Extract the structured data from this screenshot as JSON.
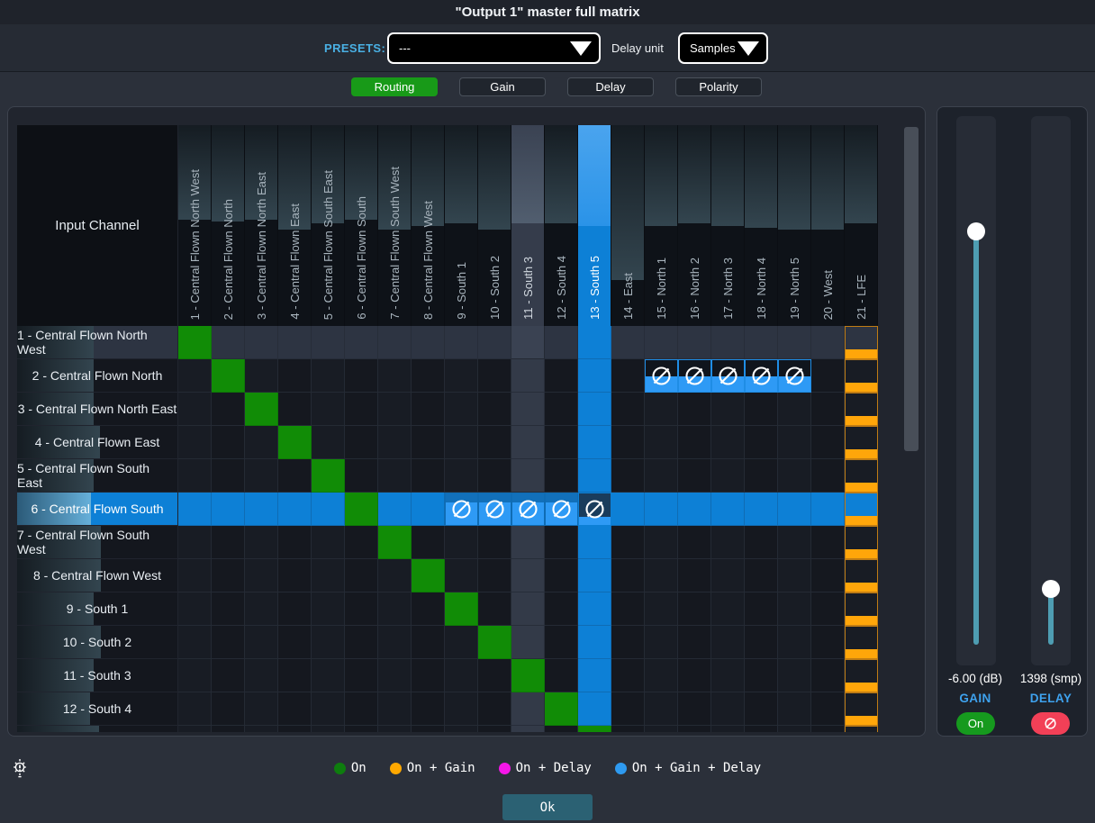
{
  "title": "\"Output 1\" master full matrix",
  "toolbar": {
    "presets_label": "PRESETS:",
    "presets_value": "---",
    "delay_unit_label": "Delay unit",
    "delay_unit_value": "Samples"
  },
  "tabs": [
    {
      "label": "Routing",
      "active": true
    },
    {
      "label": "Gain",
      "active": false
    },
    {
      "label": "Delay",
      "active": false
    },
    {
      "label": "Polarity",
      "active": false
    }
  ],
  "matrix": {
    "corner_label": "Input Channel",
    "channels": [
      "1 - Central Flown North West",
      "2 - Central Flown North",
      "3 - Central Flown North East",
      "4 - Central Flown East",
      "5 - Central Flown South East",
      "6 - Central Flown South",
      "7 - Central Flown South West",
      "8 - Central Flown West",
      "9 - South 1",
      "10 - South 2",
      "11 - South 3",
      "12 - South 4",
      "13 - South 5",
      "14 - East",
      "15 - North 1",
      "16 - North 2",
      "17 - North 3",
      "18 - North 4",
      "19 - North 5",
      "20 - West",
      "21 - LFE"
    ],
    "visible_rows": 13,
    "selected_row": 6,
    "selected_column": 13,
    "highlighted_row": 1,
    "highlighted_column": 11,
    "diagonal_state": "on",
    "lfe_column": 21,
    "lfe_fill": 0.3,
    "polarity_cells": [
      {
        "row": 2,
        "columns": [
          15,
          16,
          17,
          18,
          19
        ],
        "fill": 0.48
      },
      {
        "row": 6,
        "columns": [
          9,
          10,
          11,
          12
        ],
        "fill": 0.72
      },
      {
        "row": 6,
        "columns": [
          13
        ],
        "fill": 0.26
      }
    ],
    "column_meter_levels": [
      0.47,
      0.48,
      0.47,
      0.52,
      0.49,
      0.47,
      0.52,
      0.5,
      0.49,
      0.52,
      0.49,
      0.49,
      0.5,
      0.77,
      0.5,
      0.49,
      0.5,
      0.51,
      0.52,
      0.52,
      0.49
    ],
    "row_meter_levels": [
      0.475,
      0.475,
      0.475,
      0.515,
      0.475,
      0.46,
      0.52,
      0.52,
      0.475,
      0.52,
      0.475,
      0.455,
      0.51
    ]
  },
  "side_panel": {
    "gain_value": "-6.00 (dB)",
    "gain_label": "GAIN",
    "gain_button_label": "On",
    "gain_slider_pos": 0.21,
    "delay_value": "1398 (smp)",
    "delay_label": "DELAY",
    "delay_slider_pos": 0.86,
    "accent_teal": "#4e9db2",
    "on_button_color": "#169a1e",
    "polarity_button_color": "#f24057"
  },
  "legend": {
    "items": [
      {
        "label": "On",
        "color": "#0e7d0e"
      },
      {
        "label": "On + Gain",
        "color": "#ffa800"
      },
      {
        "label": "On + Delay",
        "color": "#f516e8"
      },
      {
        "label": "On + Gain + Delay",
        "color": "#2e9af0"
      }
    ]
  },
  "footer": {
    "ok_label": "Ok"
  },
  "colors": {
    "selected_blue": "#0d80d6",
    "routing_green": "#118c06",
    "gain_orange": "#ffa60a",
    "polarity_fill_blue": "#2e9af5"
  }
}
